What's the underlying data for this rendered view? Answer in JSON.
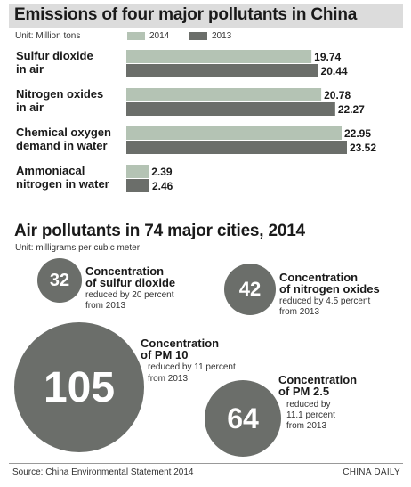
{
  "chart_data": [
    {
      "type": "bar",
      "title": "Emissions of four major pollutants in China",
      "unit": "Unit: Million tons",
      "categories": [
        [
          "Sulfur dioxide",
          "in air"
        ],
        [
          "Nitrogen oxides",
          "in air"
        ],
        [
          "Chemical oxygen",
          "demand in water"
        ],
        [
          "Ammoniacal",
          "nitrogen in water"
        ]
      ],
      "series": [
        {
          "name": "2014",
          "color": "#b4c3b4",
          "values": [
            19.74,
            20.78,
            22.95,
            2.39
          ]
        },
        {
          "name": "2013",
          "color": "#6b6e6a",
          "values": [
            20.44,
            22.27,
            23.52,
            2.46
          ]
        }
      ],
      "value_labels": {
        "2014": [
          "19.74",
          "20.78",
          "22.95",
          "2.39"
        ],
        "2013": [
          "20.44",
          "22.27",
          "23.52",
          "2.46"
        ]
      },
      "orientation": "horizontal",
      "xlim": [
        0,
        23.52
      ],
      "grid": false,
      "legend": "top"
    },
    {
      "type": "bubble",
      "title": "Air pollutants in 74 major cities, 2014",
      "unit": "Unit: milligrams per cubic meter",
      "items": [
        {
          "value": "32",
          "title": [
            "Concentration",
            "of sulfur dioxide"
          ],
          "note": [
            "reduced by 20 percent",
            "from 2013"
          ]
        },
        {
          "value": "42",
          "title": [
            "Concentration",
            "of nitrogen oxides"
          ],
          "note": [
            "reduced by 4.5 percent",
            "from 2013"
          ]
        },
        {
          "value": "105",
          "title": [
            "Concentration",
            "of PM 10"
          ],
          "note": [
            "reduced by 11 percent",
            "from 2013"
          ]
        },
        {
          "value": "64",
          "title": [
            "Concentration",
            "of PM 2.5"
          ],
          "note": [
            "reduced by",
            "11.1 percent",
            "from 2013"
          ]
        }
      ]
    }
  ],
  "footer": {
    "source": "Source: China Environmental Statement 2014",
    "credit": "CHINA DAILY"
  }
}
